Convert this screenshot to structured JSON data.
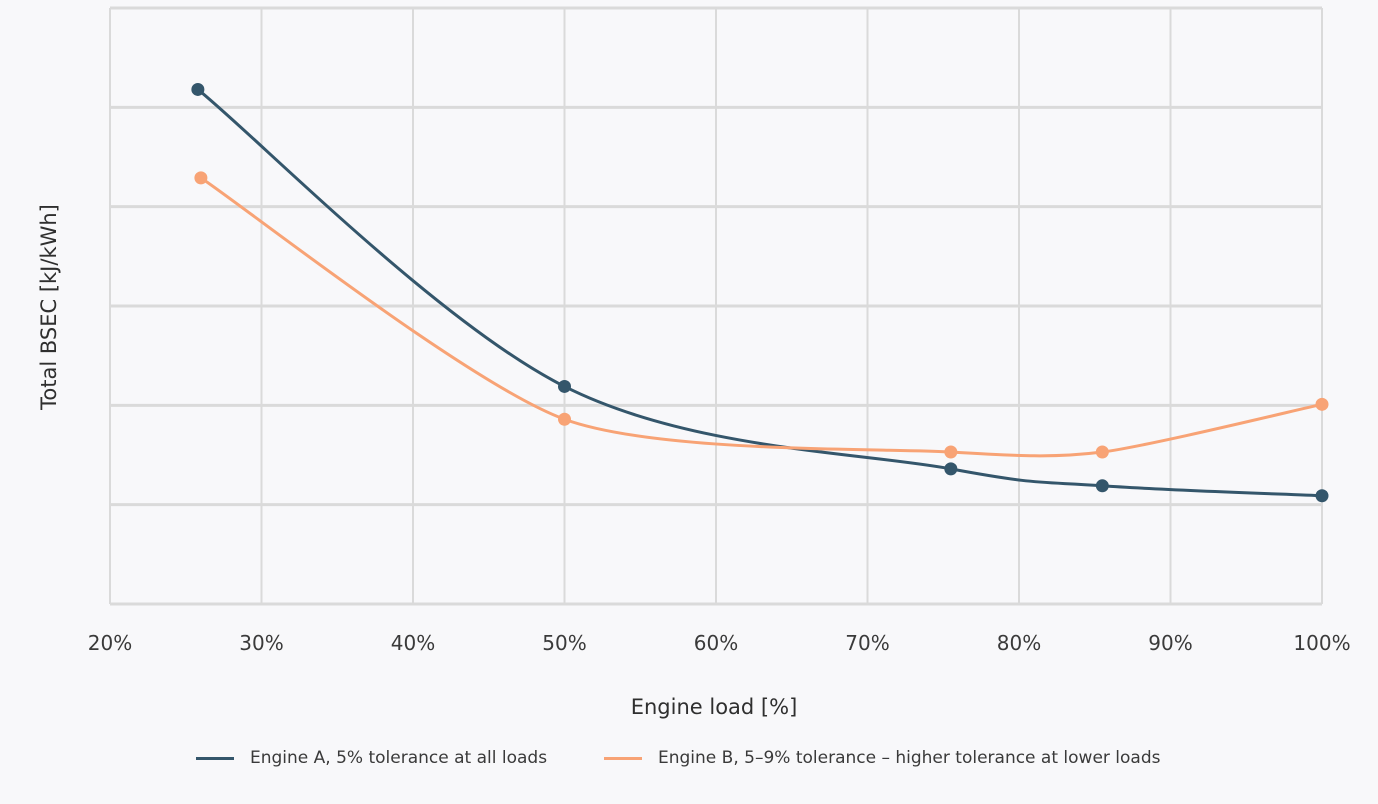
{
  "chart_data": {
    "type": "line",
    "title": "",
    "xlabel": "Engine load [%]",
    "ylabel": "Total BSEC [kJ/kWh]",
    "xlim": [
      20,
      100
    ],
    "ylim": [
      0,
      6
    ],
    "x_ticks": [
      "20%",
      "30%",
      "40%",
      "50%",
      "60%",
      "70%",
      "80%",
      "90%",
      "100%"
    ],
    "y_ticks_labeled": false,
    "grid": true,
    "legend_position": "bottom",
    "series": [
      {
        "name": "Engine A, 5% tolerance at all loads",
        "color": "#34566b",
        "x": [
          25.8,
          50,
          75.5,
          85.5,
          100
        ],
        "y": [
          5.18,
          2.19,
          1.36,
          1.19,
          1.09
        ]
      },
      {
        "name": "Engine B, 5–9% tolerance – higher tolerance at lower loads",
        "color": "#f8a375",
        "x": [
          26,
          50,
          75.5,
          85.5,
          100
        ],
        "y": [
          4.29,
          1.86,
          1.53,
          1.53,
          2.01
        ]
      }
    ]
  }
}
